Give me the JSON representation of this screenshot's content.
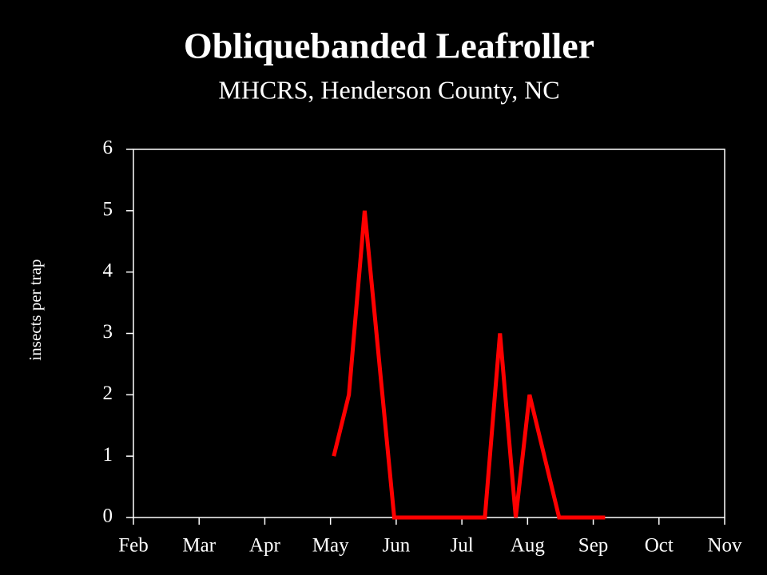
{
  "chart_data": {
    "type": "line",
    "title": "Obliquebanded Leafroller",
    "subtitle": "MHCRS, Henderson County, NC",
    "y_label": "insects per trap",
    "x": [
      3.05,
      3.28,
      3.52,
      3.97,
      5.35,
      5.58,
      5.82,
      6.03,
      6.48,
      7.18
    ],
    "series": [
      {
        "name": "insects per trap",
        "color": "#ff0000",
        "values": [
          1,
          2,
          5,
          0,
          0,
          3,
          0,
          2,
          0,
          0
        ]
      }
    ],
    "xlim": [
      0,
      9
    ],
    "xticks": [
      {
        "value": 0,
        "label": "Feb"
      },
      {
        "value": 1,
        "label": "Mar"
      },
      {
        "value": 2,
        "label": "Apr"
      },
      {
        "value": 3,
        "label": "May"
      },
      {
        "value": 4,
        "label": "Jun"
      },
      {
        "value": 5,
        "label": "Jul"
      },
      {
        "value": 6,
        "label": "Aug"
      },
      {
        "value": 7,
        "label": "Sep"
      },
      {
        "value": 8,
        "label": "Oct"
      },
      {
        "value": 9,
        "label": "Nov"
      }
    ],
    "ylim": [
      0,
      6
    ],
    "yticks": [
      0,
      1,
      2,
      3,
      4,
      5,
      6
    ]
  }
}
